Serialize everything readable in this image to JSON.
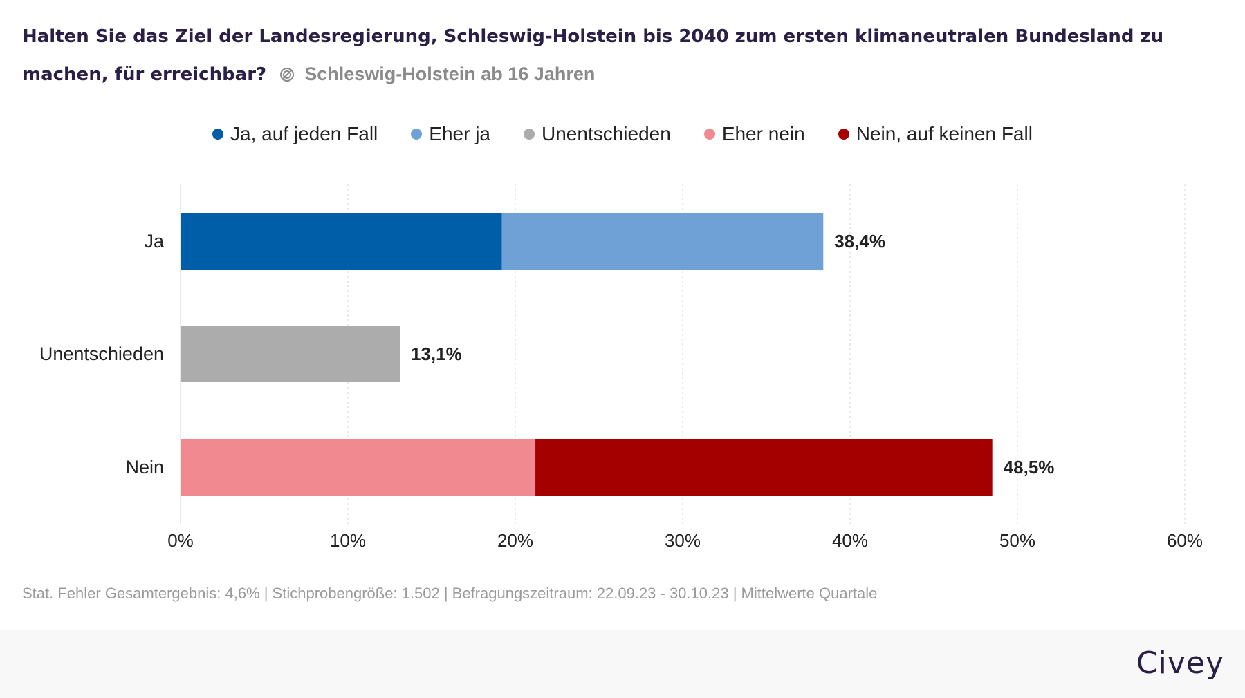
{
  "header": {
    "title": "Halten Sie das Ziel der Landesregierung, Schleswig-Holstein bis 2040 zum ersten klimaneutralen Bundesland zu machen, für erreichbar?",
    "subtitle": "Schleswig-Holstein ab 16 Jahren",
    "subtitle_icon": "verified-ring-icon"
  },
  "legend": [
    {
      "label": "Ja, auf jeden Fall",
      "color": "#005ea8"
    },
    {
      "label": "Eher ja",
      "color": "#6fa1d6"
    },
    {
      "label": "Unentschieden",
      "color": "#acacac"
    },
    {
      "label": "Eher nein",
      "color": "#f08a90"
    },
    {
      "label": "Nein, auf keinen Fall",
      "color": "#a50000"
    }
  ],
  "chart_data": {
    "type": "bar",
    "orientation": "horizontal",
    "stacked": true,
    "categories": [
      "Ja",
      "Unentschieden",
      "Nein"
    ],
    "series": [
      {
        "name": "Ja, auf jeden Fall",
        "color": "#005ea8",
        "values": [
          19.2,
          0,
          0
        ]
      },
      {
        "name": "Eher ja",
        "color": "#6fa1d6",
        "values": [
          19.2,
          0,
          0
        ]
      },
      {
        "name": "Unentschieden",
        "color": "#acacac",
        "values": [
          0,
          13.1,
          0
        ]
      },
      {
        "name": "Eher nein",
        "color": "#f08a90",
        "values": [
          0,
          0,
          21.2
        ]
      },
      {
        "name": "Nein, auf keinen Fall",
        "color": "#a50000",
        "values": [
          0,
          0,
          27.3
        ]
      }
    ],
    "totals": [
      38.4,
      13.1,
      48.5
    ],
    "total_labels": [
      "38,4%",
      "13,1%",
      "48,5%"
    ],
    "xlim": [
      0,
      60
    ],
    "x_ticks": [
      0,
      10,
      20,
      30,
      40,
      50,
      60
    ],
    "x_tick_labels": [
      "0%",
      "10%",
      "20%",
      "30%",
      "40%",
      "50%",
      "60%"
    ],
    "grid": "vertical-dotted",
    "legend_position": "top"
  },
  "footer": {
    "note": "Stat. Fehler Gesamtergebnis: 4,6% | Stichprobengröße: 1.502 | Befragungszeitraum: 22.09.23 - 30.10.23 | Mittelwerte Quartale",
    "brand": "Civey"
  }
}
